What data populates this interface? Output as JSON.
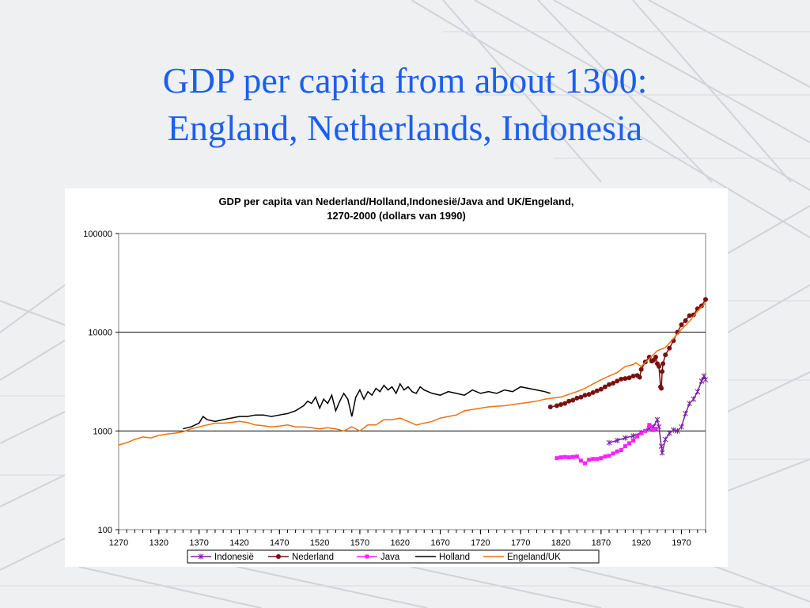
{
  "slide": {
    "title_line1": "GDP per capita from about 1300:",
    "title_line2": "England, Netherlands, Indonesia"
  },
  "colors": {
    "title": "#1c5ff0",
    "indonesie": "#7a1fa2",
    "nederland": "#7a0f10",
    "java": "#ff1fff",
    "holland": "#000000",
    "engeland": "#f07010"
  },
  "chart_data": {
    "type": "line",
    "title_line1": "GDP per capita van Nederland/Holland,Indonesië/Java and UK/Engeland,",
    "title_line2": "1270-2000 (dollars van 1990)",
    "xlabel": "",
    "ylabel": "",
    "y_scale": "log",
    "ylim": [
      100,
      100000
    ],
    "xlim": [
      1270,
      2000
    ],
    "y_ticks": [
      "100",
      "1000",
      "10000",
      "100000"
    ],
    "x_ticks": [
      "1270",
      "1320",
      "1370",
      "1420",
      "1470",
      "1520",
      "1570",
      "1620",
      "1670",
      "1720",
      "1770",
      "1820",
      "1870",
      "1920",
      "1970"
    ],
    "grid": "horizontal major gridlines",
    "legend_position": "bottom",
    "legend": [
      "Indonesië",
      "Nederland",
      "Java",
      "Holland",
      "Engeland/UK"
    ],
    "series": [
      {
        "name": "Indonesië",
        "marker": "asterisk",
        "x": [
          1880,
          1890,
          1900,
          1910,
          1920,
          1930,
          1935,
          1940,
          1942,
          1945,
          1946,
          1950,
          1955,
          1960,
          1965,
          1970,
          1975,
          1980,
          1985,
          1990,
          1995,
          1998,
          2000
        ],
        "y": [
          760,
          800,
          850,
          890,
          960,
          1060,
          1100,
          1300,
          1100,
          700,
          600,
          820,
          950,
          1020,
          1000,
          1100,
          1500,
          1900,
          2100,
          2500,
          3200,
          3600,
          3300
        ]
      },
      {
        "name": "Nederland",
        "marker": "dot",
        "x": [
          1807,
          1815,
          1820,
          1825,
          1830,
          1835,
          1840,
          1845,
          1850,
          1855,
          1860,
          1865,
          1870,
          1875,
          1880,
          1885,
          1890,
          1895,
          1900,
          1905,
          1910,
          1915,
          1918,
          1920,
          1925,
          1930,
          1933,
          1935,
          1938,
          1940,
          1942,
          1944,
          1945,
          1946,
          1947,
          1950,
          1955,
          1960,
          1965,
          1970,
          1975,
          1980,
          1985,
          1990,
          1995,
          2000
        ],
        "y": [
          1750,
          1800,
          1850,
          1900,
          2000,
          2050,
          2150,
          2200,
          2300,
          2350,
          2450,
          2550,
          2650,
          2800,
          2950,
          3050,
          3200,
          3350,
          3400,
          3450,
          3600,
          3650,
          3500,
          4200,
          5000,
          5600,
          5100,
          5200,
          5600,
          4800,
          4500,
          2800,
          2700,
          4000,
          4800,
          5900,
          6900,
          8200,
          10000,
          11900,
          13100,
          14700,
          15000,
          17300,
          18500,
          21500
        ]
      },
      {
        "name": "Java",
        "marker": "square",
        "x": [
          1815,
          1820,
          1825,
          1830,
          1835,
          1840,
          1845,
          1850,
          1855,
          1860,
          1865,
          1870,
          1875,
          1880,
          1885,
          1890,
          1895,
          1900,
          1905,
          1910,
          1915,
          1920,
          1925,
          1930,
          1935,
          1938
        ],
        "y": [
          530,
          540,
          545,
          540,
          545,
          550,
          500,
          470,
          510,
          520,
          520,
          530,
          550,
          560,
          590,
          620,
          640,
          700,
          750,
          800,
          880,
          950,
          1000,
          1150,
          1020,
          1050
        ]
      },
      {
        "name": "Holland",
        "marker": "none",
        "x": [
          1350,
          1360,
          1370,
          1375,
          1380,
          1390,
          1400,
          1410,
          1420,
          1430,
          1440,
          1450,
          1460,
          1470,
          1480,
          1490,
          1500,
          1505,
          1510,
          1515,
          1520,
          1525,
          1530,
          1535,
          1540,
          1545,
          1550,
          1555,
          1560,
          1565,
          1570,
          1575,
          1580,
          1585,
          1590,
          1595,
          1600,
          1605,
          1610,
          1615,
          1620,
          1625,
          1630,
          1635,
          1640,
          1645,
          1650,
          1660,
          1670,
          1680,
          1690,
          1700,
          1710,
          1720,
          1730,
          1740,
          1750,
          1760,
          1770,
          1780,
          1790,
          1800,
          1807
        ],
        "y": [
          1050,
          1100,
          1200,
          1400,
          1300,
          1250,
          1300,
          1350,
          1400,
          1400,
          1450,
          1450,
          1400,
          1450,
          1500,
          1600,
          1800,
          2000,
          1900,
          2200,
          1700,
          2100,
          1900,
          2300,
          1600,
          2000,
          2400,
          2100,
          1400,
          2200,
          2600,
          2100,
          2500,
          2300,
          2700,
          2500,
          2900,
          2600,
          2800,
          2400,
          3000,
          2600,
          2800,
          2500,
          2400,
          2800,
          2600,
          2400,
          2300,
          2500,
          2400,
          2300,
          2600,
          2400,
          2500,
          2400,
          2600,
          2500,
          2800,
          2700,
          2600,
          2500,
          2400
        ]
      },
      {
        "name": "Engeland/UK",
        "marker": "none",
        "x": [
          1270,
          1280,
          1290,
          1300,
          1310,
          1320,
          1330,
          1340,
          1350,
          1360,
          1370,
          1380,
          1390,
          1400,
          1410,
          1420,
          1430,
          1440,
          1450,
          1460,
          1470,
          1480,
          1490,
          1500,
          1510,
          1520,
          1530,
          1540,
          1550,
          1560,
          1570,
          1580,
          1590,
          1600,
          1610,
          1620,
          1630,
          1640,
          1650,
          1660,
          1670,
          1680,
          1690,
          1700,
          1710,
          1720,
          1730,
          1740,
          1750,
          1760,
          1770,
          1780,
          1790,
          1800,
          1810,
          1820,
          1830,
          1840,
          1850,
          1860,
          1870,
          1880,
          1890,
          1900,
          1910,
          1913,
          1920,
          1930,
          1940,
          1950,
          1960,
          1970,
          1980,
          1990,
          2000
        ],
        "y": [
          720,
          760,
          820,
          870,
          850,
          900,
          930,
          950,
          980,
          1050,
          1100,
          1150,
          1200,
          1200,
          1220,
          1250,
          1220,
          1150,
          1130,
          1100,
          1120,
          1150,
          1100,
          1100,
          1080,
          1050,
          1080,
          1050,
          1000,
          1100,
          1000,
          1150,
          1150,
          1300,
          1300,
          1350,
          1250,
          1150,
          1200,
          1250,
          1350,
          1400,
          1450,
          1600,
          1650,
          1700,
          1750,
          1780,
          1800,
          1850,
          1900,
          1950,
          2000,
          2100,
          2150,
          2200,
          2350,
          2500,
          2700,
          3000,
          3300,
          3600,
          3900,
          4500,
          4700,
          4900,
          4500,
          5400,
          6500,
          7000,
          8600,
          10700,
          12900,
          16400,
          19800
        ]
      }
    ]
  }
}
